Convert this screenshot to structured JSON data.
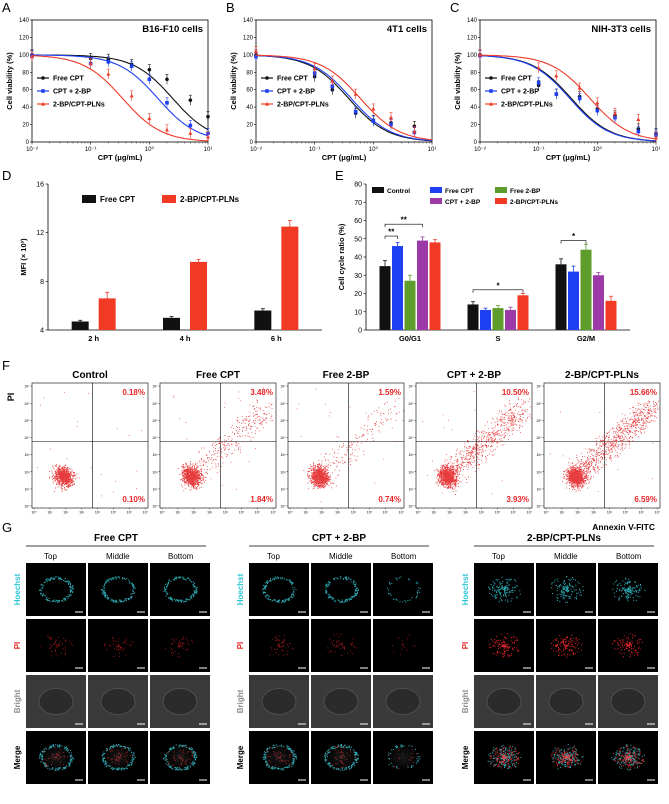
{
  "figure": {
    "panel_letters": [
      "A",
      "B",
      "C",
      "D",
      "E",
      "F",
      "G"
    ],
    "colors": {
      "black": "#111111",
      "blue": "#1e3ff2",
      "red": "#ee3b2b",
      "green": "#5e9d2b",
      "purple": "#9c3aa8",
      "orange": "#f03a24"
    }
  },
  "chart_data": [
    {
      "id": "A",
      "type": "line",
      "title": "B16-F10 cells",
      "xlabel": "CPT (μg/mL)",
      "ylabel": "Cell viability (%)",
      "xscale": "log",
      "xlim": [
        0.01,
        10
      ],
      "ylim": [
        0,
        140
      ],
      "xticks": [
        "10⁻²",
        "10⁻¹",
        "10⁰",
        "10¹"
      ],
      "yticks": [
        "0",
        "20",
        "40",
        "60",
        "80",
        "100",
        "120",
        "140"
      ],
      "legend": [
        "Free CPT",
        "CPT + 2-BP",
        "2-BP/CPT-PLNs"
      ],
      "series": [
        {
          "name": "Free CPT",
          "x": [
            0.01,
            0.1,
            0.2,
            0.5,
            1,
            2,
            5,
            10
          ],
          "y": [
            100,
            96,
            95,
            89,
            83,
            72,
            48,
            29
          ],
          "ic50": 2.5
        },
        {
          "name": "CPT + 2-BP",
          "x": [
            0.01,
            0.1,
            0.2,
            0.5,
            1,
            2,
            5,
            10
          ],
          "y": [
            99,
            90,
            92,
            87,
            72,
            45,
            19,
            10
          ],
          "ic50": 1.4
        },
        {
          "name": "2-BP/CPT-PLNs",
          "x": [
            0.01,
            0.1,
            0.2,
            0.5,
            1,
            2,
            5,
            10
          ],
          "y": [
            98,
            90,
            78,
            53,
            27,
            14,
            10,
            6
          ],
          "ic50": 0.35
        }
      ]
    },
    {
      "id": "B",
      "type": "line",
      "title": "4T1 cells",
      "xlabel": "CPT (μg/mL)",
      "ylabel": "Cell viability (%)",
      "xscale": "log",
      "xlim": [
        0.01,
        10
      ],
      "ylim": [
        0,
        140
      ],
      "xticks": [
        "10⁻²",
        "10⁻¹",
        "10⁰",
        "10¹"
      ],
      "yticks": [
        "0",
        "20",
        "40",
        "60",
        "80",
        "100",
        "120",
        "140"
      ],
      "legend": [
        "Free CPT",
        "CPT + 2-BP",
        "2-BP/CPT-PLNs"
      ],
      "series": [
        {
          "name": "Free CPT",
          "x": [
            0.01,
            0.1,
            0.2,
            0.5,
            1,
            2,
            5
          ],
          "y": [
            100,
            75,
            60,
            33,
            25,
            22,
            18
          ],
          "ic50": 0.38
        },
        {
          "name": "CPT + 2-BP",
          "x": [
            0.01,
            0.1,
            0.2,
            0.5,
            1,
            2,
            5
          ],
          "y": [
            98,
            79,
            64,
            35,
            24,
            20,
            11
          ],
          "ic50": 0.42
        },
        {
          "name": "2-BP/CPT-PLNs",
          "x": [
            0.01,
            0.1,
            0.2,
            0.5,
            1,
            2,
            5
          ],
          "y": [
            104,
            84,
            70,
            55,
            38,
            28,
            12
          ],
          "ic50": 0.6
        }
      ]
    },
    {
      "id": "C",
      "type": "line",
      "title": "NIH-3T3 cells",
      "xlabel": "CPT (μg/mL)",
      "ylabel": "Cell viability (%)",
      "xscale": "log",
      "xlim": [
        0.01,
        10
      ],
      "ylim": [
        0,
        140
      ],
      "xticks": [
        "10⁻²",
        "10⁻¹",
        "10⁰",
        "10¹"
      ],
      "yticks": [
        "0",
        "20",
        "40",
        "60",
        "80",
        "100",
        "120",
        "140"
      ],
      "legend": [
        "Free CPT",
        "CPT + 2-BP",
        "2-BP/CPT-PLNs"
      ],
      "series": [
        {
          "name": "Free CPT",
          "x": [
            0.01,
            0.1,
            0.2,
            0.5,
            1,
            2,
            5,
            10
          ],
          "y": [
            100,
            65,
            55,
            52,
            38,
            30,
            15,
            10
          ],
          "ic50": 0.36
        },
        {
          "name": "CPT + 2-BP",
          "x": [
            0.01,
            0.1,
            0.2,
            0.5,
            1,
            2,
            5,
            10
          ],
          "y": [
            99,
            68,
            55,
            50,
            36,
            28,
            12,
            8
          ],
          "ic50": 0.34
        },
        {
          "name": "2-BP/CPT-PLNs",
          "x": [
            0.01,
            0.1,
            0.2,
            0.5,
            1,
            2,
            5,
            10
          ],
          "y": [
            100,
            85,
            76,
            62,
            45,
            33,
            26,
            5
          ],
          "ic50": 0.75
        }
      ]
    },
    {
      "id": "D",
      "type": "bar",
      "categories": [
        "2 h",
        "4 h",
        "6 h"
      ],
      "ylabel": "MFI (× 10³)",
      "ylim": [
        4,
        16
      ],
      "yticks": [
        "4",
        "8",
        "12",
        "16"
      ],
      "series": [
        {
          "name": "Free CPT",
          "values": [
            4.7,
            5.0,
            5.6
          ],
          "errors": [
            0.1,
            0.1,
            0.15
          ]
        },
        {
          "name": "2-BP/CPT-PLNs",
          "values": [
            6.6,
            9.6,
            12.5
          ],
          "errors": [
            0.5,
            0.2,
            0.5
          ]
        }
      ]
    },
    {
      "id": "E",
      "type": "bar",
      "categories": [
        "G0/G1",
        "S",
        "G2/M"
      ],
      "ylabel": "Cell cycle ratio (%)",
      "ylim": [
        0,
        80
      ],
      "yticks": [
        "0",
        "10",
        "20",
        "30",
        "40",
        "50",
        "60",
        "70",
        "80"
      ],
      "series": [
        {
          "name": "Control",
          "values": [
            35,
            14,
            36
          ],
          "errors": [
            3,
            1.5,
            3
          ]
        },
        {
          "name": "Free CPT",
          "values": [
            46,
            11,
            32
          ],
          "errors": [
            2,
            1,
            3
          ]
        },
        {
          "name": "Free 2-BP",
          "values": [
            27,
            12,
            44
          ],
          "errors": [
            3,
            1.5,
            3
          ]
        },
        {
          "name": "CPT + 2-BP",
          "values": [
            49,
            11,
            30
          ],
          "errors": [
            2,
            1.5,
            1.5
          ]
        },
        {
          "name": "2-BP/CPT-PLNs",
          "values": [
            48,
            19,
            16
          ],
          "errors": [
            1.5,
            1,
            2.5
          ]
        }
      ],
      "annotations": [
        "**",
        "**",
        "*",
        "*"
      ]
    }
  ],
  "flow": {
    "panels": [
      {
        "title": "Control",
        "ur": "0.18%",
        "lr": "0.10%",
        "scatter": 0.0
      },
      {
        "title": "Free CPT",
        "ur": "3.48%",
        "lr": "1.84%",
        "scatter": 0.35
      },
      {
        "title": "Free 2-BP",
        "ur": "1.59%",
        "lr": "0.74%",
        "scatter": 0.2
      },
      {
        "title": "CPT + 2-BP",
        "ur": "10.50%",
        "lr": "3.93%",
        "scatter": 0.75
      },
      {
        "title": "2-BP/CPT-PLNs",
        "ur": "15.66%",
        "lr": "6.59%",
        "scatter": 0.9
      }
    ],
    "ylabel": "PI",
    "xlabel": "Annexin V-FITC",
    "ticks": [
      "10⁰",
      "10¹",
      "10²",
      "10³",
      "10⁴",
      "10⁵",
      "10⁶",
      "10⁷"
    ]
  },
  "spheroids": {
    "groups": [
      {
        "title": "Free CPT",
        "cols": [
          "Top",
          "Middle",
          "Bottom"
        ]
      },
      {
        "title": "CPT + 2-BP",
        "cols": [
          "Top",
          "Middle",
          "Bottom"
        ]
      },
      {
        "title": "2-BP/CPT-PLNs",
        "cols": [
          "Top",
          "Middle",
          "Bottom"
        ]
      }
    ],
    "rows": [
      {
        "label": "Hoechst",
        "color": "#2fc7d6"
      },
      {
        "label": "PI",
        "color": "#e8262b"
      },
      {
        "label": "Bright",
        "color": "#8c8c8c"
      },
      {
        "label": "Merge",
        "color": "#000000"
      }
    ]
  }
}
